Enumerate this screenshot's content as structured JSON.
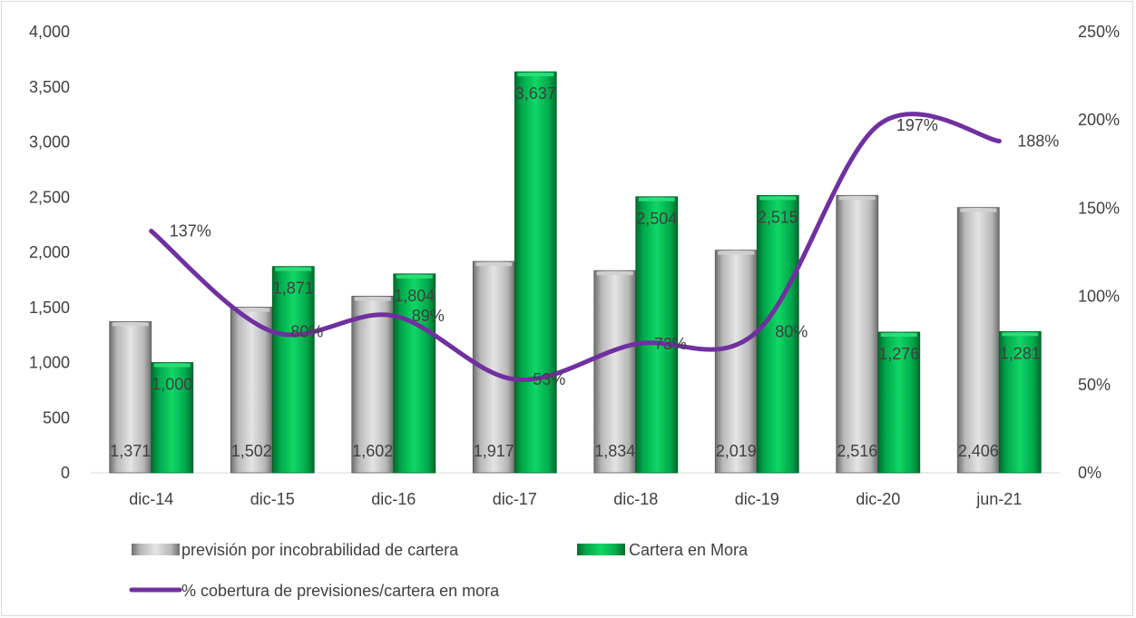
{
  "chart_data": {
    "type": "bar",
    "categories": [
      "dic-14",
      "dic-15",
      "dic-16",
      "dic-17",
      "dic-18",
      "dic-19",
      "dic-20",
      "jun-21"
    ],
    "series": [
      {
        "name": "previsión por incobrabilidad de cartera",
        "type": "bar",
        "axis": "left",
        "color": "#a6a6a6",
        "values": [
          1371,
          1502,
          1602,
          1917,
          1834,
          2019,
          2516,
          2406
        ],
        "labels": [
          "1,371",
          "1,502",
          "1,602",
          "1,917",
          "1,834",
          "2,019",
          "2,516",
          "2,406"
        ]
      },
      {
        "name": "Cartera en Mora",
        "type": "bar",
        "axis": "left",
        "color": "#00b050",
        "values": [
          1000,
          1871,
          1804,
          3637,
          2504,
          2515,
          1276,
          1281
        ],
        "labels": [
          "1,000",
          "1,871",
          "1,804",
          "3,637",
          "2,504",
          "2,515",
          "1,276",
          "1,281"
        ]
      },
      {
        "name": "% cobertura de previsiones/cartera en mora",
        "type": "line",
        "axis": "right",
        "color": "#7030a0",
        "values": [
          137,
          80,
          89,
          53,
          73,
          80,
          197,
          188
        ],
        "labels": [
          "137%",
          "80%",
          "89%",
          "53%",
          "73%",
          "80%",
          "197%",
          "188%"
        ]
      }
    ],
    "y_left": {
      "min": 0,
      "max": 4000,
      "ticks": [
        "0",
        "500",
        "1,000",
        "1,500",
        "2,000",
        "2,500",
        "3,000",
        "3,500",
        "4,000"
      ]
    },
    "y_right": {
      "min": 0,
      "max": 250,
      "ticks": [
        "0%",
        "50%",
        "100%",
        "150%",
        "200%",
        "250%"
      ]
    },
    "legend_position": "bottom",
    "grid": false
  }
}
